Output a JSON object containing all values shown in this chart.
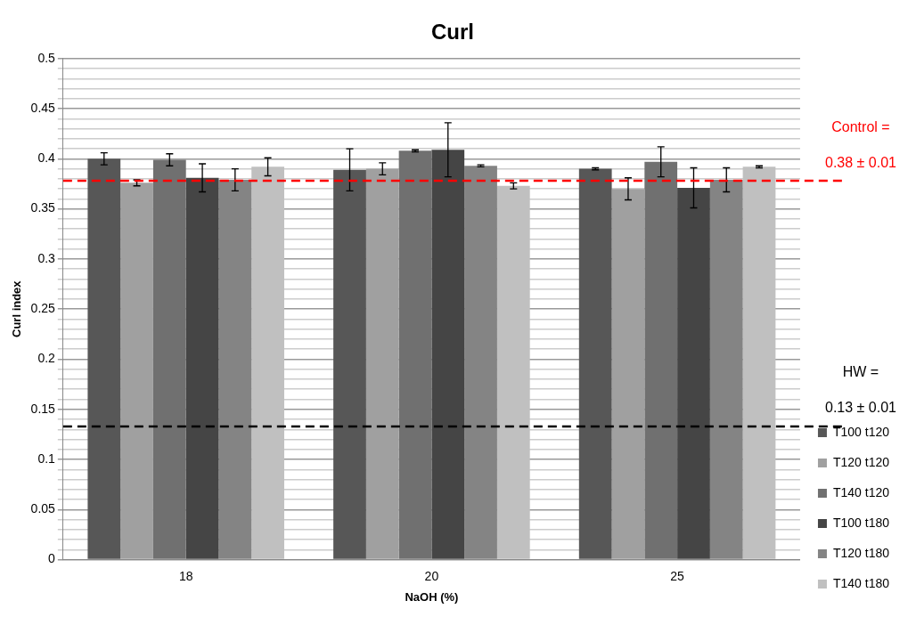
{
  "chart_data": {
    "type": "bar",
    "title": "Curl",
    "xlabel": "NaOH (%)",
    "ylabel": "Curl index",
    "categories": [
      "18",
      "20",
      "25"
    ],
    "series": [
      {
        "name": "T100 t120",
        "color": "#575757",
        "values": [
          0.4,
          0.389,
          0.39
        ],
        "errors": [
          0.006,
          0.021,
          0.001
        ]
      },
      {
        "name": "T120 t120",
        "color": "#a0a0a0",
        "values": [
          0.376,
          0.39,
          0.37
        ],
        "errors": [
          0.003,
          0.006,
          0.011
        ]
      },
      {
        "name": "T140 t120",
        "color": "#707070",
        "values": [
          0.399,
          0.408,
          0.397
        ],
        "errors": [
          0.006,
          0.001,
          0.015
        ]
      },
      {
        "name": "T100 t180",
        "color": "#454545",
        "values": [
          0.381,
          0.409,
          0.371
        ],
        "errors": [
          0.014,
          0.027,
          0.02
        ]
      },
      {
        "name": "T120 t180",
        "color": "#848484",
        "values": [
          0.379,
          0.393,
          0.379
        ],
        "errors": [
          0.011,
          0.001,
          0.012
        ]
      },
      {
        "name": "T140 t180",
        "color": "#c0c0c0",
        "values": [
          0.392,
          0.373,
          0.392
        ],
        "errors": [
          0.009,
          0.003,
          0.001
        ]
      }
    ],
    "ylim": [
      0,
      0.5
    ],
    "yticks": [
      0,
      {
        "value": 0.01,
        "label": null
      },
      {
        "value": 0.02,
        "label": null
      },
      {
        "value": 0.03,
        "label": null
      },
      {
        "value": 0.04,
        "label": null
      },
      0.05,
      {
        "value": 0.06,
        "label": null
      },
      {
        "value": 0.07,
        "label": null
      },
      {
        "value": 0.08,
        "label": null
      },
      {
        "value": 0.09,
        "label": null
      },
      0.1,
      {
        "value": 0.11,
        "label": null
      },
      {
        "value": 0.12,
        "label": null
      },
      {
        "value": 0.13,
        "label": null
      },
      {
        "value": 0.14,
        "label": null
      },
      0.15,
      {
        "value": 0.16,
        "label": null
      },
      {
        "value": 0.17,
        "label": null
      },
      {
        "value": 0.18,
        "label": null
      },
      {
        "value": 0.19,
        "label": null
      },
      0.2,
      {
        "value": 0.21,
        "label": null
      },
      {
        "value": 0.22,
        "label": null
      },
      {
        "value": 0.23,
        "label": null
      },
      {
        "value": 0.24,
        "label": null
      },
      0.25,
      {
        "value": 0.26,
        "label": null
      },
      {
        "value": 0.27,
        "label": null
      },
      {
        "value": 0.28,
        "label": null
      },
      {
        "value": 0.29,
        "label": null
      },
      0.3,
      {
        "value": 0.31,
        "label": null
      },
      {
        "value": 0.32,
        "label": null
      },
      {
        "value": 0.33,
        "label": null
      },
      {
        "value": 0.34,
        "label": null
      },
      0.35,
      {
        "value": 0.36,
        "label": null
      },
      {
        "value": 0.37,
        "label": null
      },
      {
        "value": 0.38,
        "label": null
      },
      {
        "value": 0.39,
        "label": null
      },
      0.4,
      {
        "value": 0.41,
        "label": null
      },
      {
        "value": 0.42,
        "label": null
      },
      {
        "value": 0.43,
        "label": null
      },
      {
        "value": 0.44,
        "label": null
      },
      0.45,
      {
        "value": 0.46,
        "label": null
      },
      {
        "value": 0.47,
        "label": null
      },
      {
        "value": 0.48,
        "label": null
      },
      {
        "value": 0.49,
        "label": null
      },
      0.5
    ],
    "grid": "y",
    "legend": "bottom right",
    "ref_lines": [
      {
        "axis": "y",
        "value": 0.378,
        "label": "Control = 0.38 ± 0.01",
        "color": "#ff0000",
        "line_style": "dashed"
      },
      {
        "axis": "y",
        "value": 0.133,
        "label": "HW = 0.13 ± 0.01",
        "color": "#000000",
        "line_style": "dashed"
      }
    ]
  }
}
